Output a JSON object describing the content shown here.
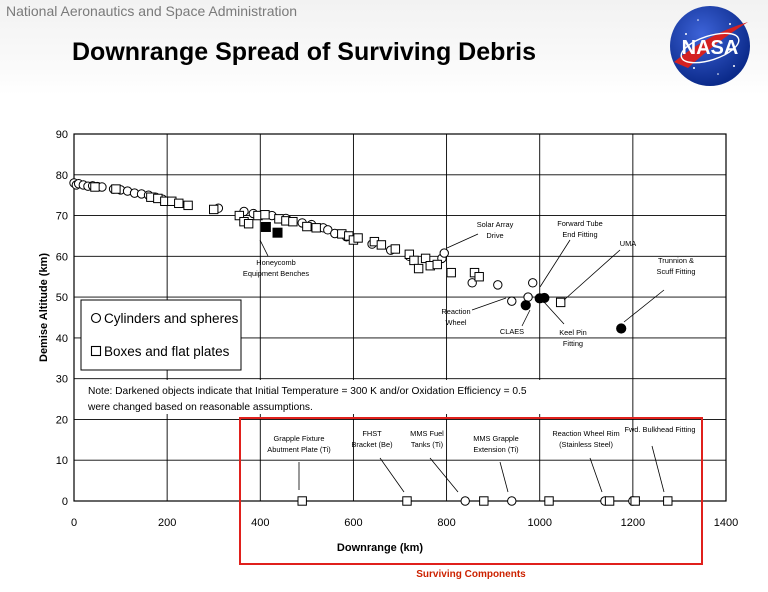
{
  "header": {
    "agency": "National Aeronautics and Space Administration",
    "title": "Downrange Spread of Surviving Debris",
    "logo_text": "NASA"
  },
  "chart_data": {
    "type": "scatter",
    "xlabel": "Downrange (km)",
    "ylabel": "Demise Altitude (km)",
    "xlim": [
      0,
      1400
    ],
    "ylim": [
      0,
      90
    ],
    "xticks": [
      0,
      200,
      400,
      600,
      800,
      1000,
      1200,
      1400
    ],
    "yticks": [
      0,
      10,
      20,
      30,
      40,
      50,
      60,
      70,
      80,
      90
    ],
    "grid": true,
    "legend_position": "left-center",
    "legend": [
      {
        "symbol": "circle",
        "label": "Cylinders and spheres"
      },
      {
        "symbol": "square",
        "label": "Boxes and flat plates"
      }
    ],
    "note": "Note: Darkened objects indicate that Initial Temperature = 300 K and/or Oxidation Efficiency = 0.5 were changed based on reasonable assumptions.",
    "series": [
      {
        "name": "Cylinders and spheres",
        "marker": "circle",
        "points": [
          [
            0,
            78
          ],
          [
            5,
            77.5
          ],
          [
            10,
            77.8
          ],
          [
            20,
            77.5
          ],
          [
            30,
            77.2
          ],
          [
            40,
            77.3
          ],
          [
            50,
            77.1
          ],
          [
            60,
            77
          ],
          [
            85,
            76.5
          ],
          [
            100,
            76.3
          ],
          [
            115,
            76
          ],
          [
            130,
            75.5
          ],
          [
            145,
            75.3
          ],
          [
            160,
            75
          ],
          [
            175,
            74.5
          ],
          [
            190,
            74
          ],
          [
            310,
            71.8
          ],
          [
            365,
            71
          ],
          [
            385,
            70.5
          ],
          [
            425,
            70
          ],
          [
            455,
            69.3
          ],
          [
            490,
            68.2
          ],
          [
            510,
            67.8
          ],
          [
            535,
            67
          ],
          [
            545,
            66.5
          ],
          [
            560,
            65.6
          ],
          [
            585,
            64.8
          ],
          [
            640,
            63
          ],
          [
            680,
            61.5
          ],
          [
            720,
            60
          ],
          [
            790,
            59.5
          ],
          [
            795,
            60.8
          ],
          [
            855,
            53.5
          ],
          [
            910,
            53
          ],
          [
            940,
            49
          ],
          [
            975,
            50
          ],
          [
            985,
            53.5
          ]
        ]
      },
      {
        "name": "Boxes and flat plates",
        "marker": "square",
        "points": [
          [
            45,
            77
          ],
          [
            90,
            76.5
          ],
          [
            165,
            74.5
          ],
          [
            180,
            74.2
          ],
          [
            195,
            73.5
          ],
          [
            210,
            73.5
          ],
          [
            225,
            73
          ],
          [
            245,
            72.5
          ],
          [
            300,
            71.5
          ],
          [
            355,
            70
          ],
          [
            365,
            68.5
          ],
          [
            375,
            68
          ],
          [
            395,
            70
          ],
          [
            410,
            70.2
          ],
          [
            440,
            69.2
          ],
          [
            455,
            68.7
          ],
          [
            470,
            68.5
          ],
          [
            500,
            67.3
          ],
          [
            520,
            67
          ],
          [
            575,
            65.5
          ],
          [
            590,
            65
          ],
          [
            600,
            64
          ],
          [
            610,
            64.5
          ],
          [
            645,
            63.6
          ],
          [
            660,
            62.8
          ],
          [
            690,
            61.8
          ],
          [
            720,
            60.5
          ],
          [
            730,
            59
          ],
          [
            740,
            57
          ],
          [
            755,
            59.5
          ],
          [
            765,
            57.7
          ],
          [
            780,
            58
          ],
          [
            810,
            56
          ],
          [
            860,
            56
          ],
          [
            870,
            55
          ],
          [
            1045,
            48.7
          ]
        ]
      },
      {
        "name": "Darkened objects",
        "marker": "filled",
        "points": [
          [
            412,
            67.2,
            "square"
          ],
          [
            437,
            65.8,
            "square"
          ],
          [
            970,
            48,
            "circle"
          ],
          [
            1000,
            49.7,
            "circle"
          ],
          [
            1010,
            49.8,
            "circle"
          ],
          [
            1175,
            42.3,
            "circle"
          ]
        ]
      },
      {
        "name": "Surviving components (ground)",
        "marker": "mixed",
        "points": [
          [
            490,
            0,
            "square"
          ],
          [
            715,
            0,
            "square"
          ],
          [
            840,
            0,
            "circle"
          ],
          [
            880,
            0,
            "square"
          ],
          [
            940,
            0,
            "circle"
          ],
          [
            1020,
            0,
            "square"
          ],
          [
            1140,
            0,
            "circle"
          ],
          [
            1150,
            0,
            "square"
          ],
          [
            1200,
            0,
            "circle"
          ],
          [
            1205,
            0,
            "square"
          ],
          [
            1275,
            0,
            "square"
          ]
        ]
      }
    ],
    "annotations": [
      {
        "text": [
          "Honeycomb",
          "Equipment Benches"
        ]
      },
      {
        "text": [
          "Solar Array",
          "Drive"
        ]
      },
      {
        "text": [
          "Forward Tube",
          "End Fitting"
        ]
      },
      {
        "text": [
          "UMA"
        ]
      },
      {
        "text": [
          "Trunnion &",
          "Scuff Fitting"
        ]
      },
      {
        "text": [
          "Reaction",
          "Wheel"
        ]
      },
      {
        "text": [
          "CLAES"
        ]
      },
      {
        "text": [
          "Keel Pin",
          "Fitting"
        ]
      },
      {
        "text": [
          "Grapple Fixture",
          "Abutment Plate (Ti)"
        ]
      },
      {
        "text": [
          "FHST",
          "Bracket (Be)"
        ]
      },
      {
        "text": [
          "MMS Fuel",
          "Tanks (Ti)"
        ]
      },
      {
        "text": [
          "MMS Grapple",
          "Extension (Ti)"
        ]
      },
      {
        "text": [
          "Reaction Wheel Rim",
          "(Stainless Steel)"
        ]
      },
      {
        "text": [
          "Fwd. Bulkhead Fitting"
        ]
      }
    ],
    "callout": "Surviving Components",
    "colors": {
      "highlight_box": "#e0201c",
      "callout_text": "#cc2200",
      "axes": "#000000"
    }
  }
}
